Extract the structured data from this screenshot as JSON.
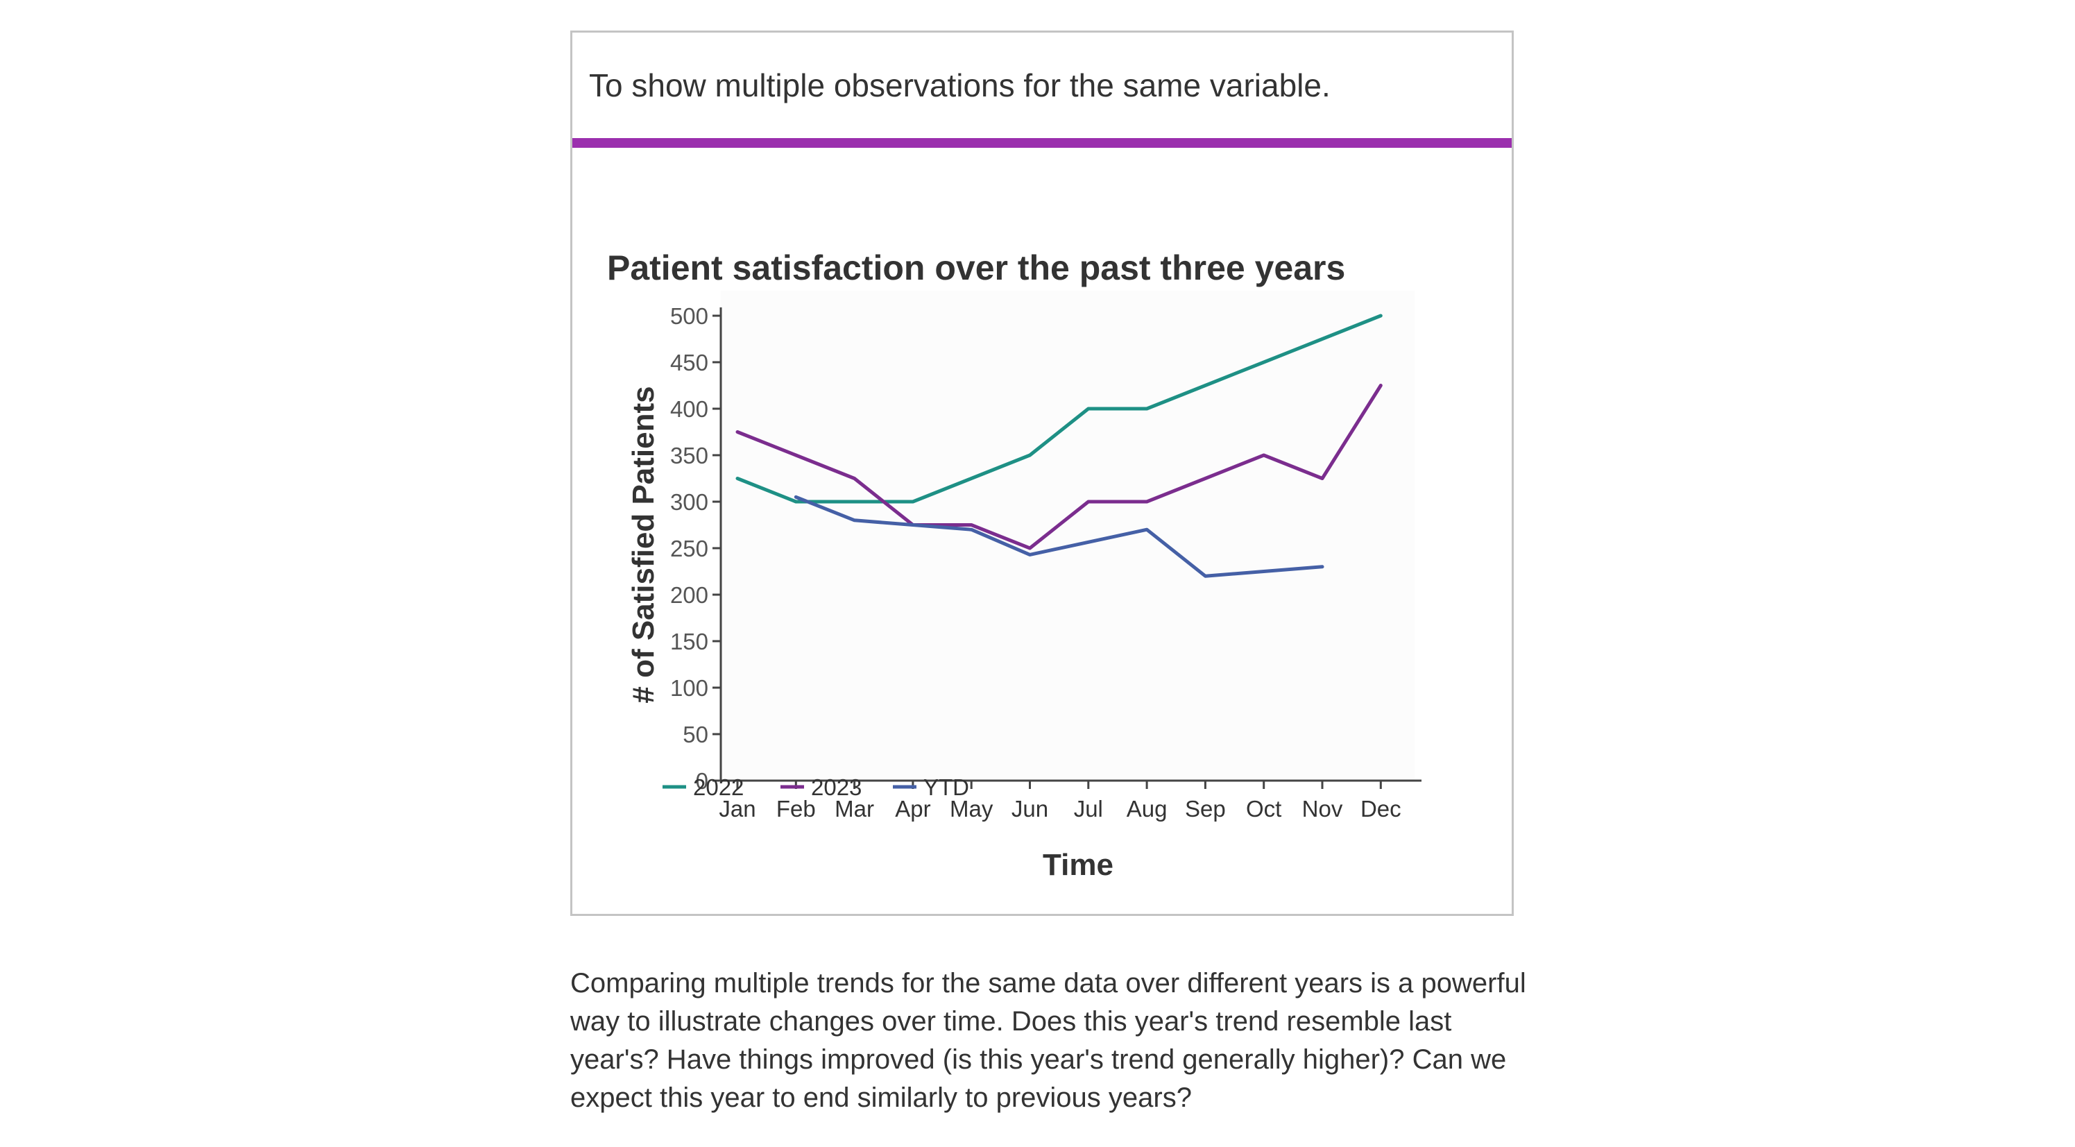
{
  "card": {
    "subtitle": "To show multiple observations for the same variable.",
    "accent_color": "#9b2fae"
  },
  "chart_data": {
    "type": "line",
    "title": "Patient satisfaction over the past three years",
    "xlabel": "Time",
    "ylabel": "# of Satisfied Patients",
    "categories": [
      "Jan",
      "Feb",
      "Mar",
      "Apr",
      "May",
      "Jun",
      "Jul",
      "Aug",
      "Sep",
      "Oct",
      "Nov",
      "Dec"
    ],
    "yticks": [
      0,
      50,
      100,
      150,
      200,
      250,
      300,
      350,
      400,
      450,
      500
    ],
    "ylim": [
      0,
      500
    ],
    "legend_position": "bottom-left",
    "series": [
      {
        "name": "2022",
        "color": "#1e9085",
        "values": [
          325,
          300,
          300,
          300,
          325,
          350,
          400,
          400,
          425,
          450,
          475,
          500
        ]
      },
      {
        "name": "2023",
        "color": "#7b2d8e",
        "values": [
          375,
          350,
          325,
          275,
          275,
          250,
          300,
          300,
          325,
          350,
          325,
          425
        ]
      },
      {
        "name": "YTD",
        "color": "#4560a6",
        "values": [
          null,
          305,
          280,
          275,
          270,
          243,
          null,
          270,
          220,
          225,
          230,
          null
        ],
        "note": "Segment Jun to Aug drawn straight; missing Jan, Jul, Dec"
      }
    ]
  },
  "description": "Comparing multiple trends for the same data over different years is a powerful way to illustrate changes over time. Does this year's trend resemble last year's? Have things improved (is this year's trend generally higher)? Can we expect this year to end similarly to previous years?"
}
